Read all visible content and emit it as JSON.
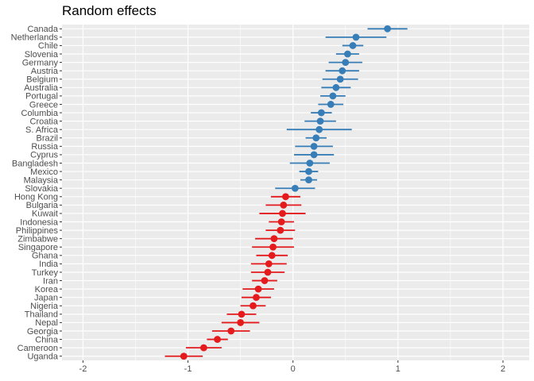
{
  "chart_data": {
    "type": "scatter",
    "subtype": "point-range",
    "title": "Random effects",
    "xlabel": "",
    "ylabel": "",
    "xlim": [
      -2.2,
      2.25
    ],
    "xticks": [
      -2,
      -1,
      0,
      1,
      2
    ],
    "xtick_labels": [
      "-2",
      "-1",
      "0",
      "1",
      "2"
    ],
    "grid": true,
    "legend": "none",
    "colors": {
      "positive": "#377eb8",
      "negative": "#e41a1c",
      "panel": "#ebebeb",
      "grid": "#ffffff"
    },
    "points": [
      {
        "label": "Canada",
        "value": 0.9,
        "low": 0.71,
        "high": 1.09
      },
      {
        "label": "Netherlands",
        "value": 0.6,
        "low": 0.31,
        "high": 0.89
      },
      {
        "label": "Chile",
        "value": 0.57,
        "low": 0.47,
        "high": 0.67
      },
      {
        "label": "Slovenia",
        "value": 0.52,
        "low": 0.41,
        "high": 0.63
      },
      {
        "label": "Germany",
        "value": 0.5,
        "low": 0.34,
        "high": 0.66
      },
      {
        "label": "Austria",
        "value": 0.47,
        "low": 0.31,
        "high": 0.63
      },
      {
        "label": "Belgium",
        "value": 0.45,
        "low": 0.28,
        "high": 0.62
      },
      {
        "label": "Australia",
        "value": 0.41,
        "low": 0.27,
        "high": 0.55
      },
      {
        "label": "Portugal",
        "value": 0.38,
        "low": 0.26,
        "high": 0.5
      },
      {
        "label": "Greece",
        "value": 0.36,
        "low": 0.24,
        "high": 0.48
      },
      {
        "label": "Columbia",
        "value": 0.27,
        "low": 0.17,
        "high": 0.37
      },
      {
        "label": "Croatia",
        "value": 0.26,
        "low": 0.11,
        "high": 0.41
      },
      {
        "label": "S. Africa",
        "value": 0.25,
        "low": -0.06,
        "high": 0.56
      },
      {
        "label": "Brazil",
        "value": 0.22,
        "low": 0.12,
        "high": 0.32
      },
      {
        "label": "Russia",
        "value": 0.2,
        "low": 0.02,
        "high": 0.38
      },
      {
        "label": "Cyprus",
        "value": 0.2,
        "low": 0.01,
        "high": 0.39
      },
      {
        "label": "Bangladesh",
        "value": 0.16,
        "low": -0.03,
        "high": 0.35
      },
      {
        "label": "Mexico",
        "value": 0.15,
        "low": 0.06,
        "high": 0.24
      },
      {
        "label": "Malaysia",
        "value": 0.15,
        "low": 0.07,
        "high": 0.23
      },
      {
        "label": "Slovakia",
        "value": 0.02,
        "low": -0.17,
        "high": 0.21
      },
      {
        "label": "Hong Kong",
        "value": -0.07,
        "low": -0.21,
        "high": 0.07
      },
      {
        "label": "Bulgaria",
        "value": -0.09,
        "low": -0.26,
        "high": 0.08
      },
      {
        "label": "Kuwait",
        "value": -0.1,
        "low": -0.32,
        "high": 0.12
      },
      {
        "label": "Indonesia",
        "value": -0.11,
        "low": -0.23,
        "high": 0.01
      },
      {
        "label": "Philippines",
        "value": -0.12,
        "low": -0.26,
        "high": 0.02
      },
      {
        "label": "Zimbabwe",
        "value": -0.18,
        "low": -0.36,
        "high": 0.0
      },
      {
        "label": "Singapore",
        "value": -0.19,
        "low": -0.39,
        "high": 0.01
      },
      {
        "label": "Ghana",
        "value": -0.2,
        "low": -0.35,
        "high": -0.05
      },
      {
        "label": "India",
        "value": -0.23,
        "low": -0.4,
        "high": -0.06
      },
      {
        "label": "Turkey",
        "value": -0.24,
        "low": -0.4,
        "high": -0.08
      },
      {
        "label": "Iran",
        "value": -0.27,
        "low": -0.39,
        "high": -0.15
      },
      {
        "label": "Korea",
        "value": -0.33,
        "low": -0.48,
        "high": -0.18
      },
      {
        "label": "Japan",
        "value": -0.35,
        "low": -0.49,
        "high": -0.21
      },
      {
        "label": "Nigeria",
        "value": -0.38,
        "low": -0.5,
        "high": -0.26
      },
      {
        "label": "Thailand",
        "value": -0.49,
        "low": -0.63,
        "high": -0.35
      },
      {
        "label": "Nepal",
        "value": -0.5,
        "low": -0.68,
        "high": -0.32
      },
      {
        "label": "Georgia",
        "value": -0.59,
        "low": -0.77,
        "high": -0.41
      },
      {
        "label": "China",
        "value": -0.72,
        "low": -0.82,
        "high": -0.62
      },
      {
        "label": "Cameroon",
        "value": -0.85,
        "low": -1.02,
        "high": -0.68
      },
      {
        "label": "Uganda",
        "value": -1.04,
        "low": -1.22,
        "high": -0.86
      }
    ]
  }
}
